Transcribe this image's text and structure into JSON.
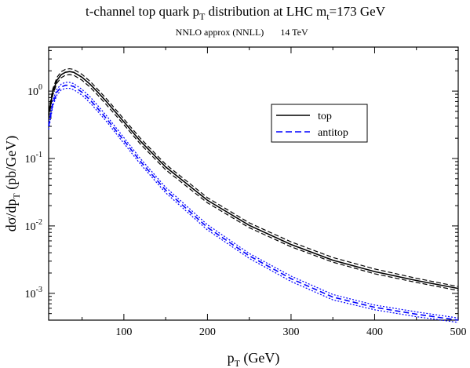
{
  "chart_data": {
    "type": "line",
    "title": {
      "main": "t-channel top quark p",
      "sub": "T",
      "rest": " distribution at LHC    m",
      "sub2": "t",
      "rest2": "=173 GeV"
    },
    "subtitle": {
      "left": "NNLO approx (NNLL)",
      "right": "14 TeV"
    },
    "xlabel": {
      "main": "p",
      "sub": "T",
      "rest": " (GeV)"
    },
    "ylabel": {
      "main": "dσ/dp",
      "sub": "T",
      "rest": " (pb/GeV)"
    },
    "xlim": [
      10,
      500
    ],
    "ylim": [
      0.0004,
      4.5
    ],
    "yscale": "log",
    "x_ticks": [
      100,
      200,
      300,
      400,
      500
    ],
    "x_tick_labels": [
      "100",
      "200",
      "300",
      "400",
      "500"
    ],
    "y_ticks": [
      {
        "base": "10",
        "exp": "0",
        "value": 1
      },
      {
        "base": "10",
        "exp": "-1",
        "value": 0.1
      },
      {
        "base": "10",
        "exp": "-2",
        "value": 0.01
      },
      {
        "base": "10",
        "exp": "-3",
        "value": 0.001
      }
    ],
    "legend": {
      "position": "top-right",
      "entries": [
        "top",
        "antitop"
      ]
    },
    "colors": {
      "top": "#000000",
      "antitop": "#0000ff"
    },
    "series": [
      {
        "name": "top",
        "style": "solid",
        "x": [
          10,
          15,
          20,
          25,
          30,
          35,
          40,
          50,
          60,
          70,
          80,
          100,
          120,
          150,
          200,
          250,
          300,
          350,
          400,
          450,
          500
        ],
        "central": [
          0.45,
          0.98,
          1.45,
          1.75,
          1.9,
          1.95,
          1.9,
          1.6,
          1.25,
          0.93,
          0.68,
          0.35,
          0.18,
          0.075,
          0.024,
          0.0102,
          0.0053,
          0.0031,
          0.0021,
          0.00155,
          0.00118
        ],
        "upper": [
          0.5,
          1.08,
          1.6,
          1.94,
          2.1,
          2.15,
          2.1,
          1.77,
          1.38,
          1.02,
          0.75,
          0.385,
          0.198,
          0.082,
          0.0262,
          0.0111,
          0.0058,
          0.0034,
          0.0023,
          0.00167,
          0.00126
        ],
        "lower": [
          0.4,
          0.88,
          1.32,
          1.58,
          1.72,
          1.76,
          1.72,
          1.45,
          1.13,
          0.84,
          0.61,
          0.318,
          0.163,
          0.068,
          0.022,
          0.0094,
          0.0049,
          0.0029,
          0.00195,
          0.00145,
          0.0011
        ]
      },
      {
        "name": "antitop",
        "style": "dashed",
        "x": [
          10,
          15,
          20,
          25,
          30,
          35,
          40,
          50,
          60,
          70,
          80,
          100,
          120,
          150,
          200,
          250,
          300,
          350,
          400,
          450,
          500
        ],
        "central": [
          0.3,
          0.66,
          0.97,
          1.15,
          1.22,
          1.22,
          1.17,
          0.96,
          0.73,
          0.53,
          0.38,
          0.185,
          0.09,
          0.034,
          0.0095,
          0.0036,
          0.00165,
          0.00088,
          0.00062,
          0.00049,
          0.0004
        ],
        "upper": [
          0.33,
          0.73,
          1.07,
          1.27,
          1.35,
          1.35,
          1.29,
          1.06,
          0.81,
          0.585,
          0.42,
          0.204,
          0.099,
          0.0374,
          0.0104,
          0.0039,
          0.0018,
          0.00096,
          0.00067,
          0.00053,
          0.00043
        ],
        "lower": [
          0.27,
          0.6,
          0.88,
          1.04,
          1.1,
          1.1,
          1.05,
          0.87,
          0.66,
          0.48,
          0.345,
          0.168,
          0.082,
          0.031,
          0.0087,
          0.0033,
          0.0015,
          0.0008,
          0.00057,
          0.00045,
          0.00037
        ]
      }
    ]
  }
}
